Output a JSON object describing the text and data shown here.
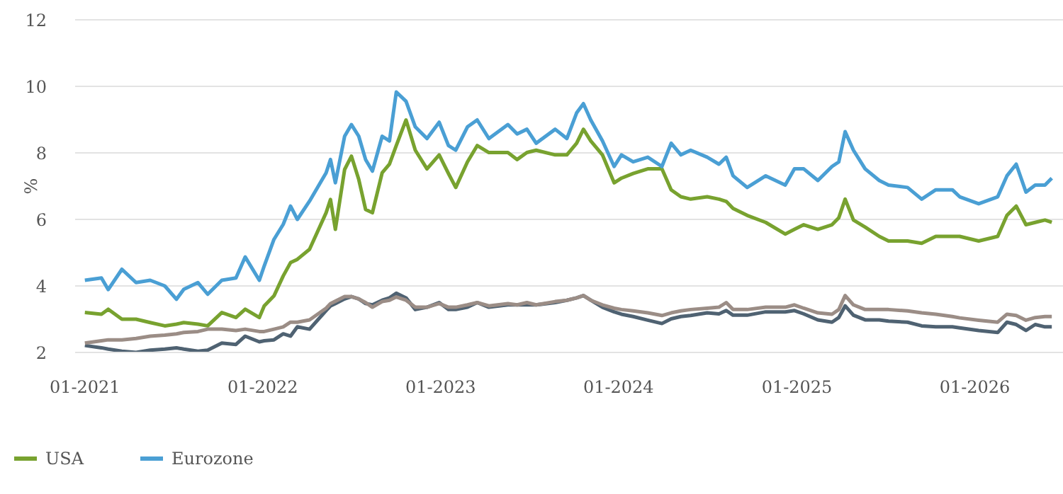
{
  "chart_data": {
    "type": "line",
    "ylabel": "%",
    "x": [
      "2021-01-01",
      "2021-02-04",
      "2021-02-18",
      "2021-03-18",
      "2021-04-16",
      "2021-05-15",
      "2021-06-14",
      "2021-07-08",
      "2021-07-23",
      "2021-08-21",
      "2021-09-10",
      "2021-10-09",
      "2021-11-07",
      "2021-11-26",
      "2021-12-25",
      "2022-01-04",
      "2022-01-24",
      "2022-02-12",
      "2022-02-27",
      "2022-03-13",
      "2022-04-07",
      "2022-05-11",
      "2022-05-20",
      "2022-05-30",
      "2022-06-18",
      "2022-07-02",
      "2022-07-17",
      "2022-07-31",
      "2022-08-14",
      "2022-09-03",
      "2022-09-18",
      "2022-10-02",
      "2022-10-22",
      "2022-11-10",
      "2022-12-04",
      "2022-12-29",
      "2023-01-17",
      "2023-02-01",
      "2023-02-25",
      "2023-03-17",
      "2023-04-10",
      "2023-05-19",
      "2023-06-07",
      "2023-06-27",
      "2023-07-16",
      "2023-08-24",
      "2023-09-17",
      "2023-10-07",
      "2023-10-21",
      "2023-11-05",
      "2023-11-29",
      "2023-12-23",
      "2024-01-07",
      "2024-01-31",
      "2024-03-01",
      "2024-03-30",
      "2024-04-18",
      "2024-05-08",
      "2024-05-28",
      "2024-07-01",
      "2024-07-25",
      "2024-08-09",
      "2024-08-23",
      "2024-09-21",
      "2024-10-29",
      "2024-12-08",
      "2024-12-27",
      "2025-01-15",
      "2025-02-13",
      "2025-03-14",
      "2025-03-28",
      "2025-04-10",
      "2025-04-27",
      "2025-05-21",
      "2025-06-19",
      "2025-07-08",
      "2025-08-16",
      "2025-09-14",
      "2025-10-13",
      "2025-11-16",
      "2025-12-01",
      "2026-01-09",
      "2026-02-17",
      "2026-03-08",
      "2026-03-27",
      "2026-04-16",
      "2026-05-05",
      "2026-05-25",
      "2026-06-08"
    ],
    "series": [
      {
        "name": "USA",
        "color": "#78a22f",
        "values": [
          3.2,
          3.15,
          3.3,
          3.0,
          3.0,
          2.9,
          2.8,
          2.85,
          2.9,
          2.85,
          2.8,
          3.2,
          3.05,
          3.3,
          3.05,
          3.4,
          3.7,
          4.3,
          4.7,
          4.8,
          5.1,
          6.2,
          6.6,
          5.7,
          7.5,
          7.9,
          7.2,
          6.3,
          6.2,
          7.4,
          7.66,
          8.22,
          8.99,
          8.08,
          7.52,
          7.94,
          7.38,
          6.96,
          7.73,
          8.22,
          8.01,
          8.01,
          7.8,
          8.01,
          8.08,
          7.94,
          7.94,
          8.29,
          8.71,
          8.36,
          7.94,
          7.1,
          7.24,
          7.38,
          7.52,
          7.52,
          6.89,
          6.68,
          6.61,
          6.68,
          6.61,
          6.54,
          6.33,
          6.12,
          5.91,
          5.56,
          5.7,
          5.84,
          5.7,
          5.84,
          6.05,
          6.61,
          5.98,
          5.77,
          5.49,
          5.35,
          5.35,
          5.28,
          5.49,
          5.49,
          5.49,
          5.35,
          5.49,
          6.12,
          6.4,
          5.84,
          5.91,
          5.98,
          5.91
        ]
      },
      {
        "name": "Eurozone",
        "color": "#4a9fd4",
        "values": [
          4.17,
          4.24,
          3.89,
          4.5,
          4.1,
          4.17,
          4.0,
          3.6,
          3.9,
          4.1,
          3.75,
          4.17,
          4.24,
          4.87,
          4.17,
          4.6,
          5.4,
          5.85,
          6.4,
          6.0,
          6.55,
          7.4,
          7.8,
          7.1,
          8.5,
          8.85,
          8.5,
          7.8,
          7.45,
          8.5,
          8.36,
          9.83,
          9.55,
          8.78,
          8.43,
          8.92,
          8.22,
          8.08,
          8.78,
          8.99,
          8.43,
          8.85,
          8.57,
          8.71,
          8.29,
          8.71,
          8.43,
          9.2,
          9.48,
          8.99,
          8.36,
          7.59,
          7.94,
          7.73,
          7.87,
          7.59,
          8.29,
          7.94,
          8.08,
          7.87,
          7.66,
          7.87,
          7.31,
          6.96,
          7.31,
          7.03,
          7.52,
          7.52,
          7.17,
          7.59,
          7.73,
          8.64,
          8.08,
          7.52,
          7.17,
          7.03,
          6.96,
          6.61,
          6.89,
          6.89,
          6.68,
          6.47,
          6.68,
          7.31,
          7.66,
          6.82,
          7.03,
          7.03,
          7.24
        ]
      },
      {
        "color": "#4f6272",
        "values": [
          2.21,
          2.14,
          2.1,
          2.04,
          2.0,
          2.07,
          2.1,
          2.14,
          2.1,
          2.04,
          2.07,
          2.28,
          2.24,
          2.49,
          2.32,
          2.35,
          2.38,
          2.56,
          2.49,
          2.77,
          2.7,
          3.26,
          3.4,
          3.47,
          3.61,
          3.68,
          3.61,
          3.47,
          3.43,
          3.57,
          3.64,
          3.78,
          3.64,
          3.29,
          3.36,
          3.5,
          3.29,
          3.29,
          3.36,
          3.5,
          3.36,
          3.43,
          3.43,
          3.43,
          3.43,
          3.5,
          3.57,
          3.64,
          3.71,
          3.57,
          3.36,
          3.22,
          3.15,
          3.08,
          2.97,
          2.87,
          3.01,
          3.08,
          3.11,
          3.19,
          3.16,
          3.26,
          3.12,
          3.12,
          3.22,
          3.22,
          3.26,
          3.16,
          2.98,
          2.91,
          3.05,
          3.4,
          3.12,
          2.98,
          2.98,
          2.94,
          2.91,
          2.8,
          2.77,
          2.77,
          2.74,
          2.66,
          2.6,
          2.91,
          2.84,
          2.66,
          2.84,
          2.77,
          2.77
        ]
      },
      {
        "color": "#9b8d86",
        "values": [
          2.28,
          2.35,
          2.38,
          2.38,
          2.42,
          2.49,
          2.52,
          2.56,
          2.6,
          2.63,
          2.7,
          2.7,
          2.66,
          2.7,
          2.63,
          2.63,
          2.7,
          2.77,
          2.91,
          2.91,
          2.98,
          3.33,
          3.47,
          3.54,
          3.68,
          3.68,
          3.61,
          3.5,
          3.36,
          3.53,
          3.57,
          3.67,
          3.57,
          3.36,
          3.36,
          3.47,
          3.36,
          3.36,
          3.43,
          3.5,
          3.4,
          3.47,
          3.43,
          3.5,
          3.43,
          3.53,
          3.57,
          3.64,
          3.71,
          3.57,
          3.43,
          3.33,
          3.29,
          3.25,
          3.19,
          3.11,
          3.19,
          3.25,
          3.29,
          3.33,
          3.36,
          3.5,
          3.29,
          3.29,
          3.36,
          3.36,
          3.43,
          3.33,
          3.19,
          3.15,
          3.29,
          3.71,
          3.43,
          3.29,
          3.29,
          3.29,
          3.25,
          3.19,
          3.15,
          3.08,
          3.04,
          2.97,
          2.91,
          3.15,
          3.11,
          2.97,
          3.05,
          3.08,
          3.08
        ]
      }
    ],
    "xlim": [
      "2020-12-12",
      "2026-07-01"
    ],
    "xticks": [
      {
        "value": "2021-01-01",
        "label": "01-2021"
      },
      {
        "value": "2022-01-01",
        "label": "01-2022"
      },
      {
        "value": "2023-01-01",
        "label": "01-2023"
      },
      {
        "value": "2024-01-01",
        "label": "01-2024"
      },
      {
        "value": "2025-01-01",
        "label": "01-2025"
      },
      {
        "value": "2026-01-01",
        "label": "01-2026"
      }
    ],
    "ylim": [
      2,
      12
    ],
    "yticks": [
      2,
      4,
      6,
      8,
      10,
      12
    ],
    "grid": "y",
    "legend": "bottom left",
    "marker": "none",
    "line_style": "solid"
  }
}
